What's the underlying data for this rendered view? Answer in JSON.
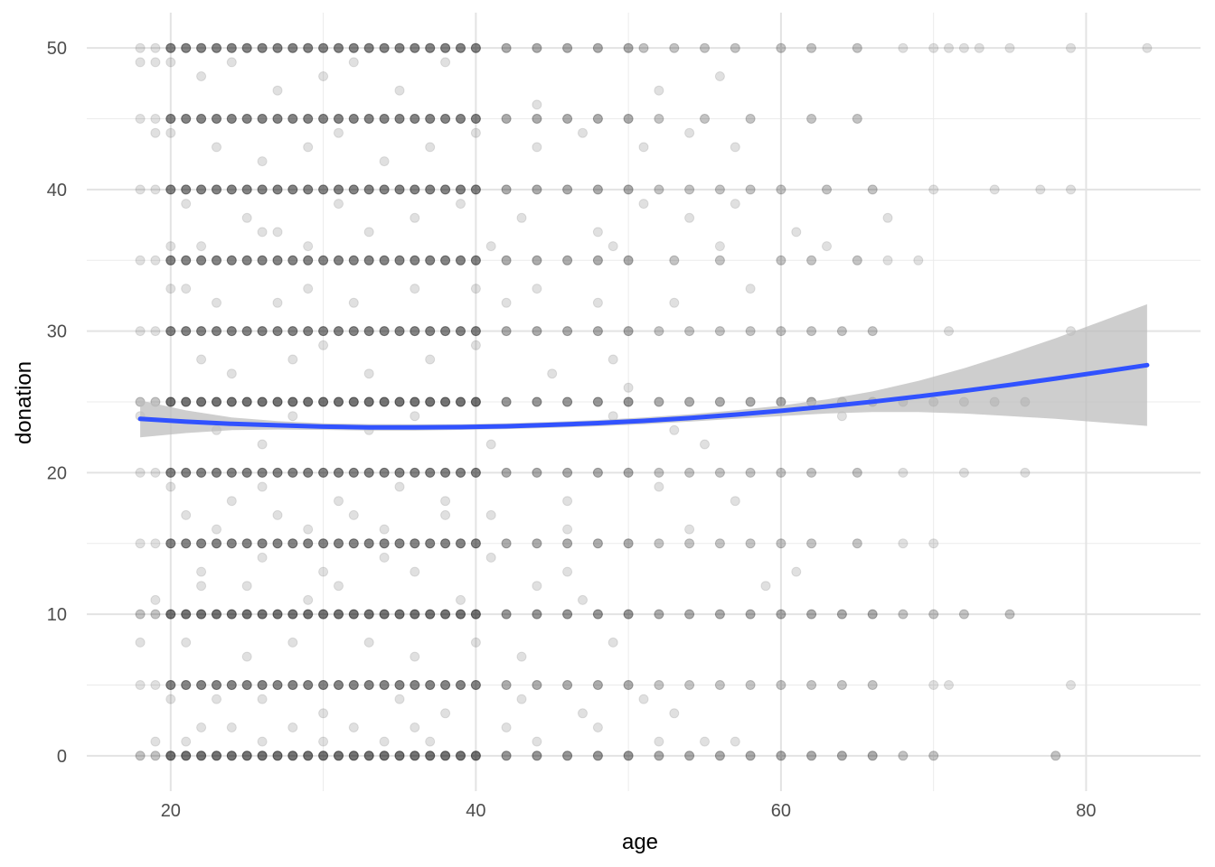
{
  "chart_data": {
    "type": "scatter",
    "title": "",
    "xlabel": "age",
    "ylabel": "donation",
    "xlim": [
      14.5,
      87.5
    ],
    "ylim": [
      -2.5,
      52.5
    ],
    "x_ticks": [
      20,
      40,
      60,
      80
    ],
    "x_tick_labels": [
      "20",
      "40",
      "60",
      "80"
    ],
    "y_ticks": [
      0,
      10,
      20,
      30,
      40,
      50
    ],
    "y_tick_labels": [
      "0",
      "10",
      "20",
      "30",
      "40",
      "50"
    ],
    "grid": true,
    "legend": "none",
    "point_color": "#000000",
    "point_alpha": 0.12,
    "smooth_color": "#3152ff",
    "ribbon_color": "#bdbdbd",
    "series": [
      {
        "type": "scatter",
        "x": [
          18,
          19,
          20,
          21,
          22,
          23,
          24,
          25,
          26,
          27,
          28,
          29,
          30,
          31,
          32,
          33,
          34,
          35,
          36,
          37,
          38,
          39,
          40,
          42,
          44,
          46,
          48,
          50,
          51,
          53,
          55,
          57,
          60,
          62,
          65,
          68,
          70,
          71,
          72,
          73,
          75,
          79,
          84,
          18,
          19,
          20,
          21,
          22,
          23,
          24,
          25,
          26,
          27,
          28,
          29,
          30,
          31,
          32,
          33,
          34,
          35,
          36,
          37,
          38,
          39,
          40,
          42,
          44,
          46,
          48,
          50,
          52,
          55,
          58,
          62,
          65,
          18,
          19,
          20,
          21,
          22,
          23,
          24,
          25,
          26,
          27,
          28,
          29,
          30,
          31,
          32,
          33,
          34,
          35,
          36,
          37,
          38,
          39,
          40,
          42,
          44,
          46,
          48,
          50,
          52,
          54,
          56,
          58,
          60,
          63,
          66,
          70,
          74,
          77,
          79,
          18,
          19,
          20,
          21,
          22,
          23,
          24,
          25,
          26,
          27,
          28,
          29,
          30,
          31,
          32,
          33,
          34,
          35,
          36,
          37,
          38,
          39,
          40,
          42,
          44,
          46,
          48,
          50,
          53,
          56,
          60,
          62,
          65,
          67,
          69,
          18,
          19,
          20,
          21,
          22,
          23,
          24,
          25,
          26,
          27,
          28,
          29,
          30,
          31,
          32,
          33,
          34,
          35,
          36,
          37,
          38,
          39,
          40,
          42,
          44,
          46,
          48,
          50,
          52,
          54,
          56,
          58,
          60,
          62,
          64,
          66,
          71,
          79,
          18,
          19,
          20,
          21,
          22,
          23,
          24,
          25,
          26,
          27,
          28,
          29,
          30,
          31,
          32,
          33,
          34,
          35,
          36,
          37,
          38,
          39,
          40,
          42,
          44,
          46,
          48,
          50,
          52,
          54,
          56,
          58,
          60,
          62,
          64,
          66,
          68,
          70,
          72,
          74,
          76,
          18,
          19,
          20,
          21,
          22,
          23,
          24,
          25,
          26,
          27,
          28,
          29,
          30,
          31,
          32,
          33,
          34,
          35,
          36,
          37,
          38,
          39,
          40,
          42,
          44,
          46,
          48,
          50,
          52,
          54,
          56,
          58,
          60,
          62,
          65,
          68,
          72,
          76,
          18,
          19,
          20,
          21,
          22,
          23,
          24,
          25,
          26,
          27,
          28,
          29,
          30,
          31,
          32,
          33,
          34,
          35,
          36,
          37,
          38,
          39,
          40,
          42,
          44,
          46,
          48,
          50,
          52,
          54,
          56,
          58,
          60,
          62,
          65,
          68,
          70,
          18,
          19,
          20,
          21,
          22,
          23,
          24,
          25,
          26,
          27,
          28,
          29,
          30,
          31,
          32,
          33,
          34,
          35,
          36,
          37,
          38,
          39,
          40,
          42,
          44,
          46,
          48,
          50,
          52,
          54,
          56,
          58,
          60,
          62,
          64,
          66,
          68,
          70,
          72,
          75,
          18,
          19,
          20,
          21,
          22,
          23,
          24,
          25,
          26,
          27,
          28,
          29,
          30,
          31,
          32,
          33,
          34,
          35,
          36,
          37,
          38,
          39,
          40,
          42,
          44,
          46,
          48,
          50,
          52,
          54,
          56,
          58,
          60,
          62,
          64,
          66,
          70,
          71,
          79,
          18,
          19,
          20,
          21,
          22,
          23,
          24,
          25,
          26,
          27,
          28,
          29,
          30,
          31,
          32,
          33,
          34,
          35,
          36,
          37,
          38,
          39,
          40,
          42,
          44,
          46,
          48,
          50,
          52,
          54,
          56,
          58,
          60,
          62,
          64,
          66,
          68,
          70,
          78,
          18,
          19,
          20,
          22,
          24,
          27,
          30,
          32,
          35,
          38,
          44,
          52,
          56,
          19,
          20,
          23,
          26,
          29,
          31,
          34,
          37,
          40,
          44,
          47,
          51,
          54,
          57,
          21,
          25,
          27,
          31,
          36,
          39,
          43,
          48,
          51,
          54,
          57,
          67,
          20,
          22,
          26,
          29,
          33,
          41,
          49,
          56,
          61,
          63,
          20,
          21,
          23,
          27,
          29,
          32,
          36,
          40,
          42,
          44,
          48,
          53,
          58,
          22,
          24,
          28,
          30,
          33,
          37,
          40,
          45,
          49,
          50,
          18,
          23,
          26,
          28,
          33,
          36,
          41,
          49,
          53,
          55,
          64,
          20,
          24,
          26,
          31,
          35,
          38,
          46,
          52,
          57,
          21,
          23,
          27,
          29,
          32,
          34,
          38,
          41,
          46,
          54,
          22,
          26,
          30,
          34,
          36,
          41,
          46,
          59,
          61,
          19,
          22,
          25,
          29,
          31,
          39,
          44,
          47,
          18,
          21,
          25,
          28,
          33,
          36,
          40,
          43,
          49,
          20,
          23,
          26,
          30,
          35,
          38,
          43,
          47,
          51,
          53,
          22,
          24,
          28,
          32,
          36,
          42,
          48,
          55,
          19,
          21,
          26,
          30,
          34,
          37,
          44,
          52,
          57
        ],
        "y": [
          50,
          50,
          50,
          50,
          50,
          50,
          50,
          50,
          50,
          50,
          50,
          50,
          50,
          50,
          50,
          50,
          50,
          50,
          50,
          50,
          50,
          50,
          50,
          50,
          50,
          50,
          50,
          50,
          50,
          50,
          50,
          50,
          50,
          50,
          50,
          50,
          50,
          50,
          50,
          50,
          50,
          50,
          50,
          45,
          45,
          45,
          45,
          45,
          45,
          45,
          45,
          45,
          45,
          45,
          45,
          45,
          45,
          45,
          45,
          45,
          45,
          45,
          45,
          45,
          45,
          45,
          45,
          45,
          45,
          45,
          45,
          45,
          45,
          45,
          45,
          45,
          40,
          40,
          40,
          40,
          40,
          40,
          40,
          40,
          40,
          40,
          40,
          40,
          40,
          40,
          40,
          40,
          40,
          40,
          40,
          40,
          40,
          40,
          40,
          40,
          40,
          40,
          40,
          40,
          40,
          40,
          40,
          40,
          40,
          40,
          40,
          40,
          40,
          40,
          40,
          35,
          35,
          35,
          35,
          35,
          35,
          35,
          35,
          35,
          35,
          35,
          35,
          35,
          35,
          35,
          35,
          35,
          35,
          35,
          35,
          35,
          35,
          35,
          35,
          35,
          35,
          35,
          35,
          35,
          35,
          35,
          35,
          35,
          35,
          35,
          30,
          30,
          30,
          30,
          30,
          30,
          30,
          30,
          30,
          30,
          30,
          30,
          30,
          30,
          30,
          30,
          30,
          30,
          30,
          30,
          30,
          30,
          30,
          30,
          30,
          30,
          30,
          30,
          30,
          30,
          30,
          30,
          30,
          30,
          30,
          30,
          30,
          30,
          25,
          25,
          25,
          25,
          25,
          25,
          25,
          25,
          25,
          25,
          25,
          25,
          25,
          25,
          25,
          25,
          25,
          25,
          25,
          25,
          25,
          25,
          25,
          25,
          25,
          25,
          25,
          25,
          25,
          25,
          25,
          25,
          25,
          25,
          25,
          25,
          25,
          25,
          25,
          25,
          25,
          20,
          20,
          20,
          20,
          20,
          20,
          20,
          20,
          20,
          20,
          20,
          20,
          20,
          20,
          20,
          20,
          20,
          20,
          20,
          20,
          20,
          20,
          20,
          20,
          20,
          20,
          20,
          20,
          20,
          20,
          20,
          20,
          20,
          20,
          20,
          20,
          20,
          20,
          15,
          15,
          15,
          15,
          15,
          15,
          15,
          15,
          15,
          15,
          15,
          15,
          15,
          15,
          15,
          15,
          15,
          15,
          15,
          15,
          15,
          15,
          15,
          15,
          15,
          15,
          15,
          15,
          15,
          15,
          15,
          15,
          15,
          15,
          15,
          15,
          15,
          10,
          10,
          10,
          10,
          10,
          10,
          10,
          10,
          10,
          10,
          10,
          10,
          10,
          10,
          10,
          10,
          10,
          10,
          10,
          10,
          10,
          10,
          10,
          10,
          10,
          10,
          10,
          10,
          10,
          10,
          10,
          10,
          10,
          10,
          10,
          10,
          10,
          10,
          10,
          10,
          5,
          5,
          5,
          5,
          5,
          5,
          5,
          5,
          5,
          5,
          5,
          5,
          5,
          5,
          5,
          5,
          5,
          5,
          5,
          5,
          5,
          5,
          5,
          5,
          5,
          5,
          5,
          5,
          5,
          5,
          5,
          5,
          5,
          5,
          5,
          5,
          5,
          5,
          5,
          0,
          0,
          0,
          0,
          0,
          0,
          0,
          0,
          0,
          0,
          0,
          0,
          0,
          0,
          0,
          0,
          0,
          0,
          0,
          0,
          0,
          0,
          0,
          0,
          0,
          0,
          0,
          0,
          0,
          0,
          0,
          0,
          0,
          0,
          0,
          0,
          0,
          0,
          0,
          49,
          49,
          49,
          48,
          49,
          47,
          48,
          49,
          47,
          49,
          46,
          47,
          48,
          44,
          44,
          43,
          42,
          43,
          44,
          42,
          43,
          44,
          43,
          44,
          43,
          44,
          43,
          39,
          38,
          37,
          39,
          38,
          39,
          38,
          37,
          39,
          38,
          39,
          38,
          36,
          36,
          37,
          36,
          37,
          36,
          36,
          36,
          37,
          36,
          33,
          33,
          32,
          32,
          33,
          32,
          33,
          33,
          32,
          33,
          32,
          32,
          33,
          28,
          27,
          28,
          29,
          27,
          28,
          29,
          27,
          28,
          26,
          24,
          23,
          22,
          24,
          23,
          24,
          22,
          24,
          23,
          22,
          24,
          19,
          18,
          19,
          18,
          19,
          18,
          18,
          19,
          18,
          17,
          16,
          17,
          16,
          17,
          16,
          17,
          17,
          16,
          16,
          13,
          14,
          13,
          14,
          13,
          14,
          13,
          12,
          13,
          11,
          12,
          12,
          11,
          12,
          11,
          12,
          11,
          8,
          8,
          7,
          8,
          8,
          7,
          8,
          7,
          8,
          4,
          4,
          4,
          3,
          4,
          3,
          4,
          3,
          4,
          3,
          2,
          2,
          2,
          2,
          2,
          2,
          2,
          1,
          1,
          1,
          1,
          1,
          1,
          1,
          1,
          1,
          1
        ]
      },
      {
        "type": "smooth",
        "x": [
          18,
          21,
          24,
          27,
          30,
          33,
          36,
          39,
          42,
          45,
          48,
          51,
          54,
          57,
          60,
          63,
          66,
          69,
          72,
          75,
          78,
          81,
          84
        ],
        "y": [
          23.8,
          23.6,
          23.45,
          23.35,
          23.25,
          23.2,
          23.2,
          23.22,
          23.28,
          23.38,
          23.5,
          23.66,
          23.86,
          24.1,
          24.37,
          24.68,
          25.01,
          25.38,
          25.78,
          26.2,
          26.65,
          27.12,
          27.6
        ],
        "ymin": [
          22.5,
          22.8,
          23.0,
          23.05,
          23.02,
          22.97,
          22.98,
          23.02,
          23.08,
          23.17,
          23.28,
          23.42,
          23.6,
          23.8,
          24.0,
          24.18,
          24.28,
          24.28,
          24.18,
          24.0,
          23.8,
          23.55,
          23.3
        ],
        "ymax": [
          25.1,
          24.4,
          23.9,
          23.65,
          23.48,
          23.43,
          23.42,
          23.42,
          23.48,
          23.59,
          23.72,
          23.9,
          24.12,
          24.4,
          24.74,
          25.18,
          25.74,
          26.48,
          27.38,
          28.4,
          29.5,
          30.69,
          31.9
        ]
      }
    ]
  }
}
